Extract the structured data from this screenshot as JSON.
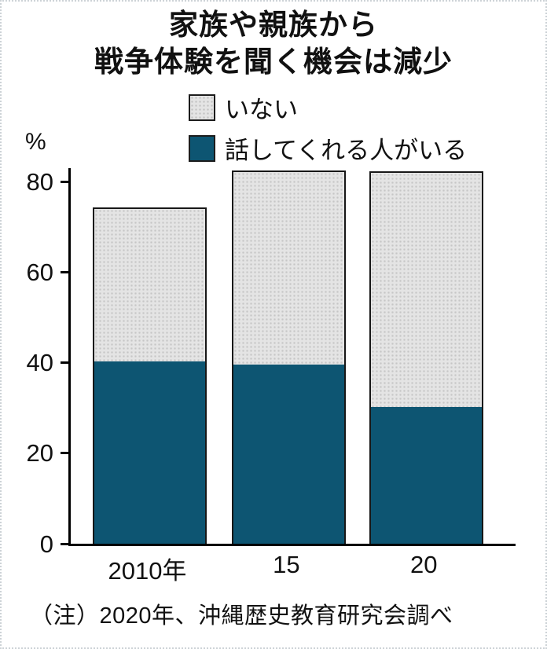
{
  "title": {
    "line1": "家族や親族から",
    "line2": "戦争体験を聞く機会は減少"
  },
  "unit_label": "%",
  "note": "（注）2020年、沖縄歴史教育研究会調べ",
  "colors": {
    "bar_dark": "#0d5572",
    "bar_light": "#e4e4e4",
    "bar_light_dot": "#c6c6c6",
    "axis": "#000000",
    "text": "#111111"
  },
  "chart_data": {
    "type": "bar",
    "subtype": "stacked",
    "categories": [
      "2010年",
      "15",
      "20"
    ],
    "series": [
      {
        "name": "話してくれる人がいる",
        "color_key": "bar_dark",
        "values": [
          40.5,
          39.8,
          30.4
        ]
      },
      {
        "name": "いない",
        "color_key": "bar_light",
        "values": [
          33.9,
          42.7,
          51.9
        ]
      }
    ],
    "totals": [
      74.4,
      82.5,
      82.3
    ],
    "legend": [
      {
        "label": "いない",
        "swatch": "light"
      },
      {
        "label": "話してくれる人がいる",
        "swatch": "dark"
      }
    ],
    "title": "家族や親族から戦争体験を聞く機会は減少",
    "xlabel": "",
    "ylabel": "%",
    "yticks": [
      0,
      20,
      40,
      60,
      80
    ],
    "ylim": [
      0,
      83
    ],
    "grid": false,
    "legend_position": "top-center"
  }
}
